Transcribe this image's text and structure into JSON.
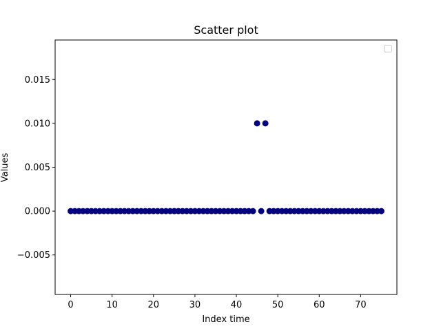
{
  "chart_data": {
    "type": "scatter",
    "title": "Scatter plot",
    "xlabel": "Index time",
    "ylabel": "Values",
    "xlim": [
      -3.75,
      78.75
    ],
    "ylim": [
      -0.0095,
      0.0195
    ],
    "xticks": [
      0,
      10,
      20,
      30,
      40,
      50,
      60,
      70
    ],
    "xtick_labels": [
      "0",
      "10",
      "20",
      "30",
      "40",
      "50",
      "60",
      "70"
    ],
    "yticks": [
      -0.005,
      0.0,
      0.005,
      0.01,
      0.015
    ],
    "ytick_labels": [
      "−0.005",
      "0.000",
      "0.005",
      "0.010",
      "0.015"
    ],
    "grid": false,
    "legend": "top-right",
    "marker_color": "#000080",
    "series": [
      {
        "x": [
          0,
          1,
          2,
          3,
          4,
          5,
          6,
          7,
          8,
          9,
          10,
          11,
          12,
          13,
          14,
          15,
          16,
          17,
          18,
          19,
          20,
          21,
          22,
          23,
          24,
          25,
          26,
          27,
          28,
          29,
          30,
          31,
          32,
          33,
          34,
          35,
          36,
          37,
          38,
          39,
          40,
          41,
          42,
          43,
          44,
          45,
          46,
          47,
          48,
          49,
          50,
          51,
          52,
          53,
          54,
          55,
          56,
          57,
          58,
          59,
          60,
          61,
          62,
          63,
          64,
          65,
          66,
          67,
          68,
          69,
          70,
          71,
          72,
          73,
          74,
          75
        ],
        "y": [
          0,
          0,
          0,
          0,
          0,
          0,
          0,
          0,
          0,
          0,
          0,
          0,
          0,
          0,
          0,
          0,
          0,
          0,
          0,
          0,
          0,
          0,
          0,
          0,
          0,
          0,
          0,
          0,
          0,
          0,
          0,
          0,
          0,
          0,
          0,
          0,
          0,
          0,
          0,
          0,
          0,
          0,
          0,
          0,
          0,
          0.01,
          0,
          0.01,
          0,
          0,
          0,
          0,
          0,
          0,
          0,
          0,
          0,
          0,
          0,
          0,
          0,
          0,
          0,
          0,
          0,
          0,
          0,
          0,
          0,
          0,
          0,
          0,
          0,
          0,
          0,
          0
        ]
      }
    ]
  }
}
